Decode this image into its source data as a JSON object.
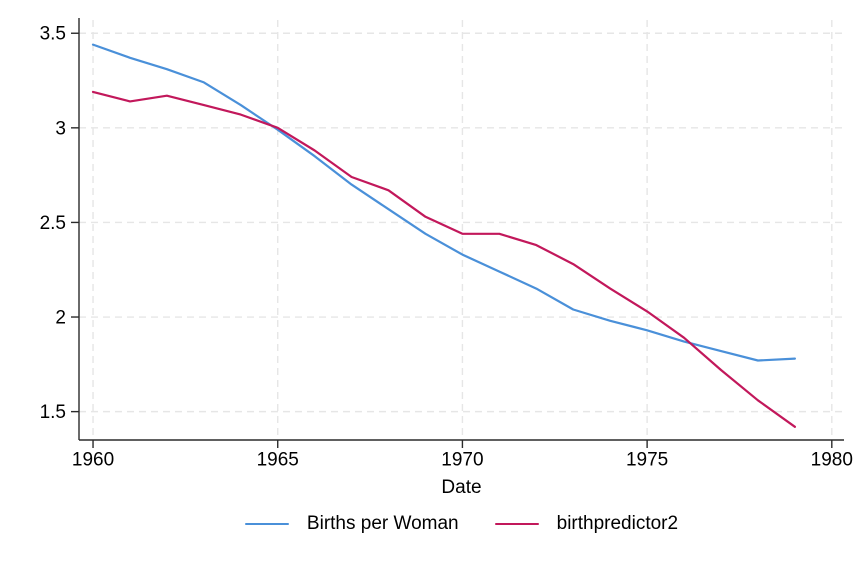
{
  "figure": {
    "background": "#ffffff",
    "axis_color": "#2b2b2b",
    "grid_color": "#e6e6e6",
    "text_color": "#000000"
  },
  "chart_data": {
    "type": "line",
    "title": "",
    "xlabel": "Date",
    "ylabel": "",
    "grid": "dashed, both axes",
    "legend_position": "bottom-center",
    "xlim": [
      1959.62,
      1980.33
    ],
    "ylim": [
      1.35,
      3.57
    ],
    "x_ticks": [
      {
        "value": 1960,
        "label": "1960"
      },
      {
        "value": 1965,
        "label": "1965"
      },
      {
        "value": 1970,
        "label": "1970"
      },
      {
        "value": 1975,
        "label": "1975"
      },
      {
        "value": 1980,
        "label": "1980"
      }
    ],
    "y_ticks": [
      {
        "value": 3.5,
        "label": "3.5"
      },
      {
        "value": 3,
        "label": "3"
      },
      {
        "value": 2.5,
        "label": "2.5"
      },
      {
        "value": 2,
        "label": "2"
      },
      {
        "value": 1.5,
        "label": "1.5"
      }
    ],
    "x": [
      1960,
      1961,
      1962,
      1963,
      1964,
      1965,
      1966,
      1967,
      1968,
      1969,
      1970,
      1971,
      1972,
      1973,
      1974,
      1975,
      1976,
      1977,
      1978,
      1979
    ],
    "series": [
      {
        "name": "Births per Woman",
        "color": "#4a90d9",
        "values": [
          3.44,
          3.37,
          3.31,
          3.24,
          3.12,
          2.99,
          2.85,
          2.7,
          2.57,
          2.44,
          2.33,
          2.24,
          2.15,
          2.04,
          1.98,
          1.93,
          1.87,
          1.82,
          1.77,
          1.78
        ]
      },
      {
        "name": "birthpredictor2",
        "color": "#c2185b",
        "values": [
          3.19,
          3.14,
          3.17,
          3.12,
          3.07,
          3.0,
          2.88,
          2.74,
          2.67,
          2.53,
          2.44,
          2.44,
          2.38,
          2.28,
          2.15,
          2.03,
          1.89,
          1.72,
          1.56,
          1.42
        ]
      }
    ]
  }
}
